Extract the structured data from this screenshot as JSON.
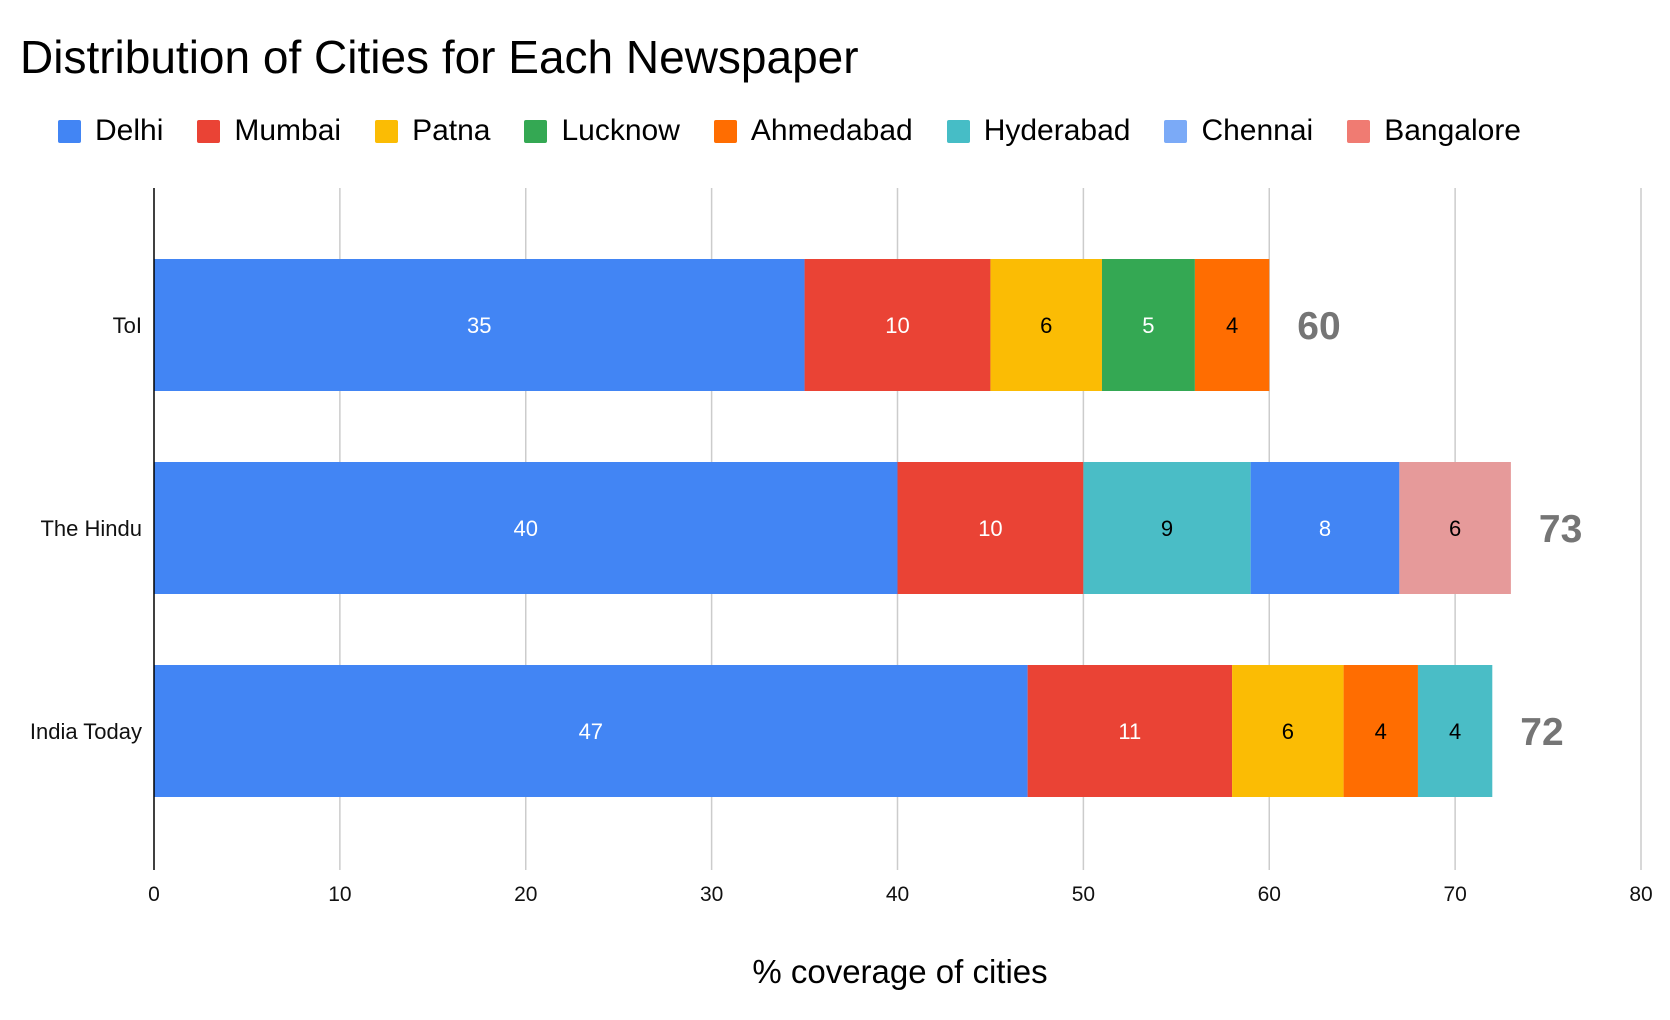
{
  "chart_data": {
    "type": "bar",
    "orientation": "horizontal",
    "stacked": true,
    "title": "Distribution of Cities for Each Newspaper",
    "xlabel": "% coverage of cities",
    "ylabel": "",
    "xlim": [
      0,
      80
    ],
    "xticks": [
      0,
      10,
      20,
      30,
      40,
      50,
      60,
      70,
      80
    ],
    "grid": "vertical",
    "legend_position": "top",
    "legend": [
      {
        "name": "Delhi",
        "color": "#4285F4"
      },
      {
        "name": "Mumbai",
        "color": "#EA4335"
      },
      {
        "name": "Patna",
        "color": "#FBBC04"
      },
      {
        "name": "Lucknow",
        "color": "#34A853"
      },
      {
        "name": "Ahmedabad",
        "color": "#FF6D01"
      },
      {
        "name": "Hyderabad",
        "color": "#46BDC6"
      },
      {
        "name": "Chennai",
        "color": "#7BAAF7"
      },
      {
        "name": "Bangalore",
        "color": "#F07B72"
      }
    ],
    "categories": [
      "ToI",
      "The Hindu",
      "India Today"
    ],
    "bars": [
      {
        "category": "ToI",
        "total": "60",
        "segments": [
          {
            "value": 35,
            "label": "35",
            "color": "#4285F4",
            "text_color": "#ffffff"
          },
          {
            "value": 10,
            "label": "10",
            "color": "#EA4335",
            "text_color": "#ffffff"
          },
          {
            "value": 6,
            "label": "6",
            "color": "#FBBC04",
            "text_color": "#000000"
          },
          {
            "value": 5,
            "label": "5",
            "color": "#34A853",
            "text_color": "#ffffff"
          },
          {
            "value": 4,
            "label": "4",
            "color": "#FF6D01",
            "text_color": "#000000"
          }
        ]
      },
      {
        "category": "The Hindu",
        "total": "73",
        "segments": [
          {
            "value": 40,
            "label": "40",
            "color": "#4285F4",
            "text_color": "#ffffff"
          },
          {
            "value": 10,
            "label": "10",
            "color": "#EA4335",
            "text_color": "#ffffff"
          },
          {
            "value": 9,
            "label": "9",
            "color": "#4ABDC6",
            "text_color": "#000000"
          },
          {
            "value": 8,
            "label": "8",
            "color": "#4285F4",
            "text_color": "#ffffff"
          },
          {
            "value": 6,
            "label": "6",
            "color": "#E69A9A",
            "text_color": "#000000"
          }
        ]
      },
      {
        "category": "India Today",
        "total": "72",
        "segments": [
          {
            "value": 47,
            "label": "47",
            "color": "#4285F4",
            "text_color": "#ffffff"
          },
          {
            "value": 11,
            "label": "11",
            "color": "#EA4335",
            "text_color": "#ffffff"
          },
          {
            "value": 6,
            "label": "6",
            "color": "#FBBC04",
            "text_color": "#000000"
          },
          {
            "value": 4,
            "label": "4",
            "color": "#FF6D01",
            "text_color": "#000000"
          },
          {
            "value": 4,
            "label": "4",
            "color": "#4ABDC6",
            "text_color": "#000000"
          }
        ]
      }
    ]
  }
}
